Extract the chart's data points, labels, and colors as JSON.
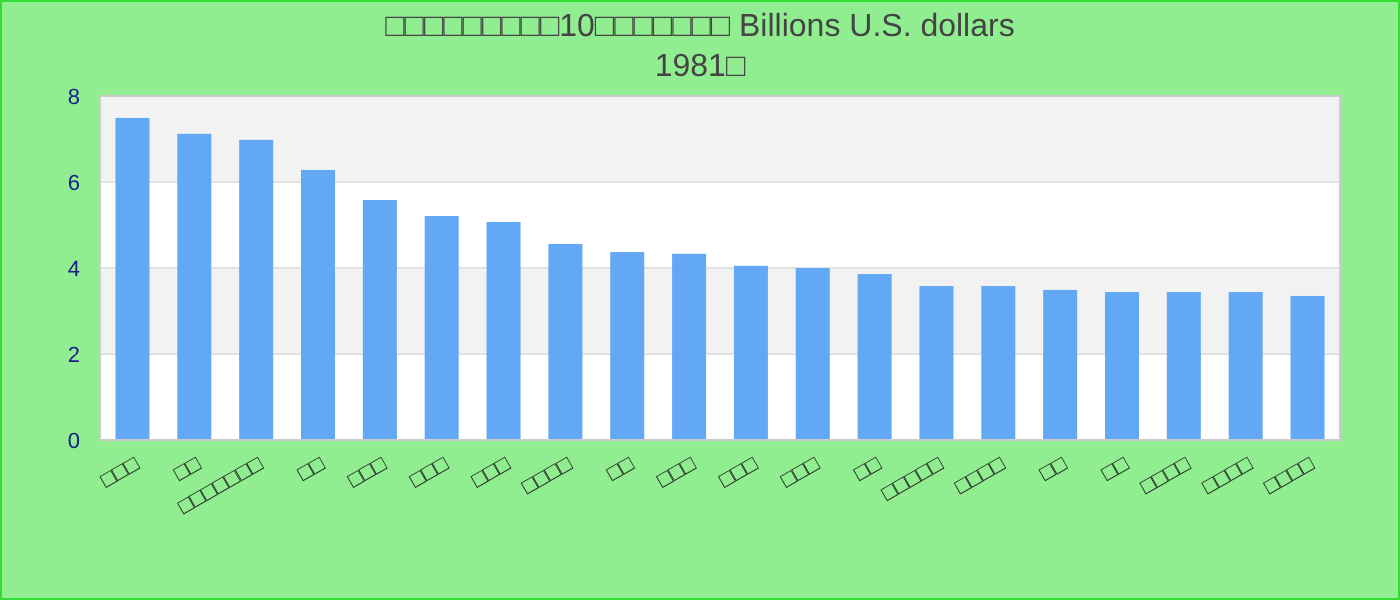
{
  "chart_data": {
    "type": "bar",
    "title": "□□□□□□□□□10□□□□□□□ Billions U.S. dollars",
    "subtitle": "1981□",
    "categories": [
      "□□□",
      "□□",
      "□□□□□□□",
      "□□",
      "□□□",
      "□□□",
      "□□□",
      "□□□□",
      "□□",
      "□□□",
      "□□□",
      "□□□",
      "□□",
      "□□□□□",
      "□□□□",
      "□□",
      "□□",
      "□□□□",
      "□□□□",
      "□□□□"
    ],
    "values": [
      7.49,
      7.12,
      6.98,
      6.28,
      5.58,
      5.21,
      5.07,
      4.56,
      4.37,
      4.33,
      4.05,
      4.0,
      3.86,
      3.58,
      3.58,
      3.49,
      3.44,
      3.44,
      3.44,
      3.35
    ],
    "color": "#62a8f4",
    "ylim": [
      0,
      8
    ],
    "yticks": [
      0,
      2,
      4,
      6,
      8
    ],
    "grid": "y"
  }
}
